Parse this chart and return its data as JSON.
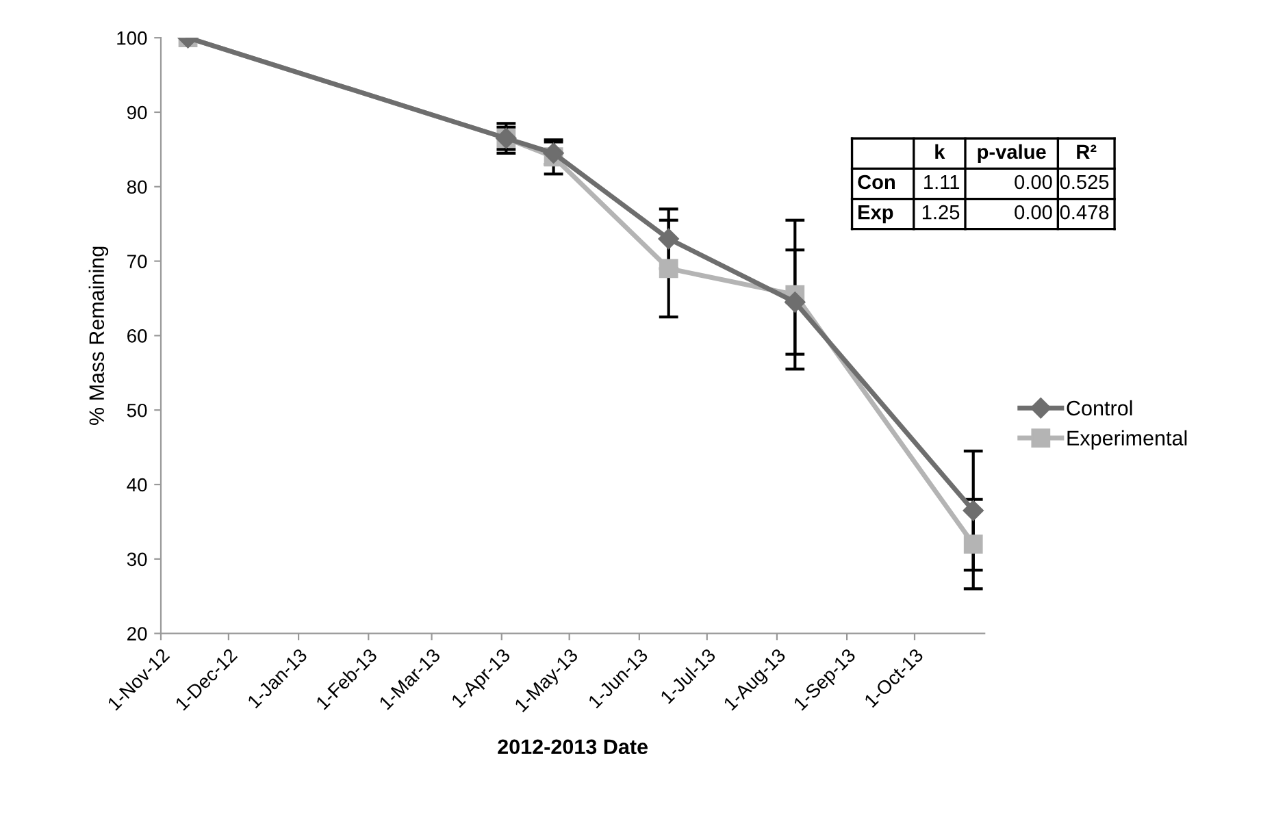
{
  "chart_data": {
    "type": "line",
    "xlabel": "2012-2013 Date",
    "ylabel": "% Mass Remaining",
    "x": [
      "2012-11-13",
      "2013-04-03",
      "2013-04-24",
      "2013-06-14",
      "2013-08-09",
      "2013-10-27"
    ],
    "series": [
      {
        "name": "Control",
        "color": "#6e6e6e",
        "marker": "diamond",
        "values": [
          100,
          86.5,
          84.5,
          73,
          64.5,
          36.5
        ],
        "errors": [
          null,
          2,
          1.5,
          4,
          7,
          8
        ]
      },
      {
        "name": "Experimental",
        "color": "#b4b4b4",
        "marker": "square",
        "values": [
          100,
          86.5,
          84,
          69,
          65.5,
          32
        ],
        "errors": [
          null,
          1.5,
          2.3,
          6.5,
          10,
          6
        ]
      }
    ],
    "xlim": [
      "2012-11-01",
      "2013-11-01"
    ],
    "xticks": [
      {
        "value": "2012-11-01",
        "label": "1-Nov-12"
      },
      {
        "value": "2012-12-01",
        "label": "1-Dec-12"
      },
      {
        "value": "2013-01-01",
        "label": "1-Jan-13"
      },
      {
        "value": "2013-02-01",
        "label": "1-Feb-13"
      },
      {
        "value": "2013-03-01",
        "label": "1-Mar-13"
      },
      {
        "value": "2013-04-01",
        "label": "1-Apr-13"
      },
      {
        "value": "2013-05-01",
        "label": "1-May-13"
      },
      {
        "value": "2013-06-01",
        "label": "1-Jun-13"
      },
      {
        "value": "2013-07-01",
        "label": "1-Jul-13"
      },
      {
        "value": "2013-08-01",
        "label": "1-Aug-13"
      },
      {
        "value": "2013-09-01",
        "label": "1-Sep-13"
      },
      {
        "value": "2013-10-01",
        "label": "1-Oct-13"
      }
    ],
    "ylim": [
      20,
      100
    ],
    "yticks": [
      20,
      30,
      40,
      50,
      60,
      70,
      80,
      90,
      100
    ],
    "grid": false,
    "legend": "right",
    "annotations": [
      "k",
      "p-value",
      "R²",
      "Con",
      "1.11",
      "0.00",
      "0.525",
      "Exp",
      "1.25",
      "0.00",
      "0.478"
    ]
  }
}
